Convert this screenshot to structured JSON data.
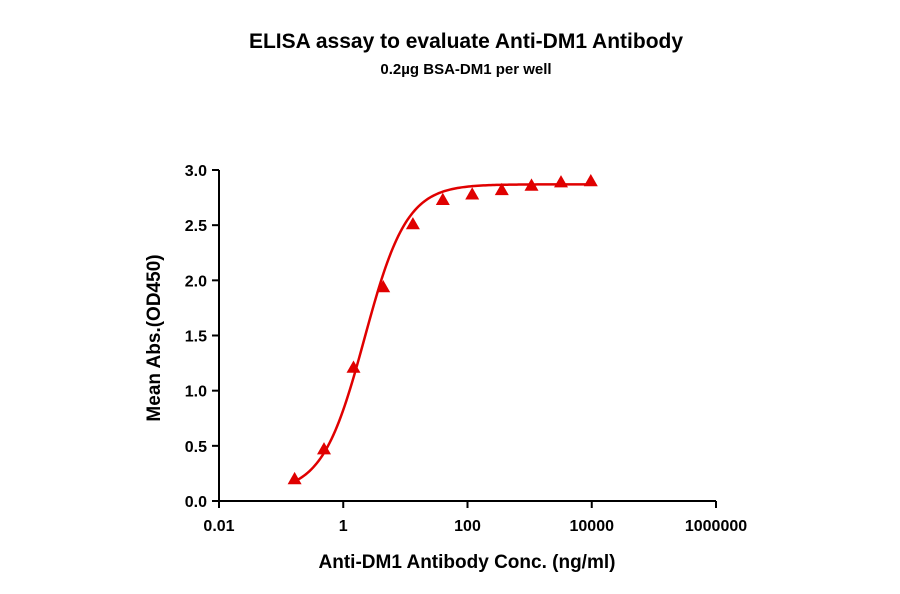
{
  "chart_data": {
    "type": "scatter",
    "title": "ELISA assay to evaluate Anti-DM1 Antibody",
    "subtitle": "0.2µg BSA-DM1 per well",
    "xlabel": "Anti-DM1 Antibody Conc. (ng/ml)",
    "ylabel": "Mean Abs.(OD450)",
    "x_scale": "log",
    "xlim": [
      0.01,
      1000000
    ],
    "ylim": [
      0,
      3.0
    ],
    "x_ticks": [
      "0.01",
      "1",
      "100",
      "10000",
      "1000000"
    ],
    "y_ticks": [
      "0.0",
      "0.5",
      "1.0",
      "1.5",
      "2.0",
      "2.5",
      "3.0"
    ],
    "grid": false,
    "legend": "none",
    "color": "#e00000",
    "marker": "triangle",
    "fit": "sigmoidal curve",
    "series": [
      {
        "x": [
          0.165,
          0.49,
          1.46,
          4.4,
          13.2,
          40,
          119,
          357,
          1070,
          3200,
          9650
        ],
        "y": [
          0.2,
          0.47,
          1.21,
          1.94,
          2.51,
          2.73,
          2.78,
          2.82,
          2.86,
          2.89,
          2.9
        ]
      }
    ]
  }
}
